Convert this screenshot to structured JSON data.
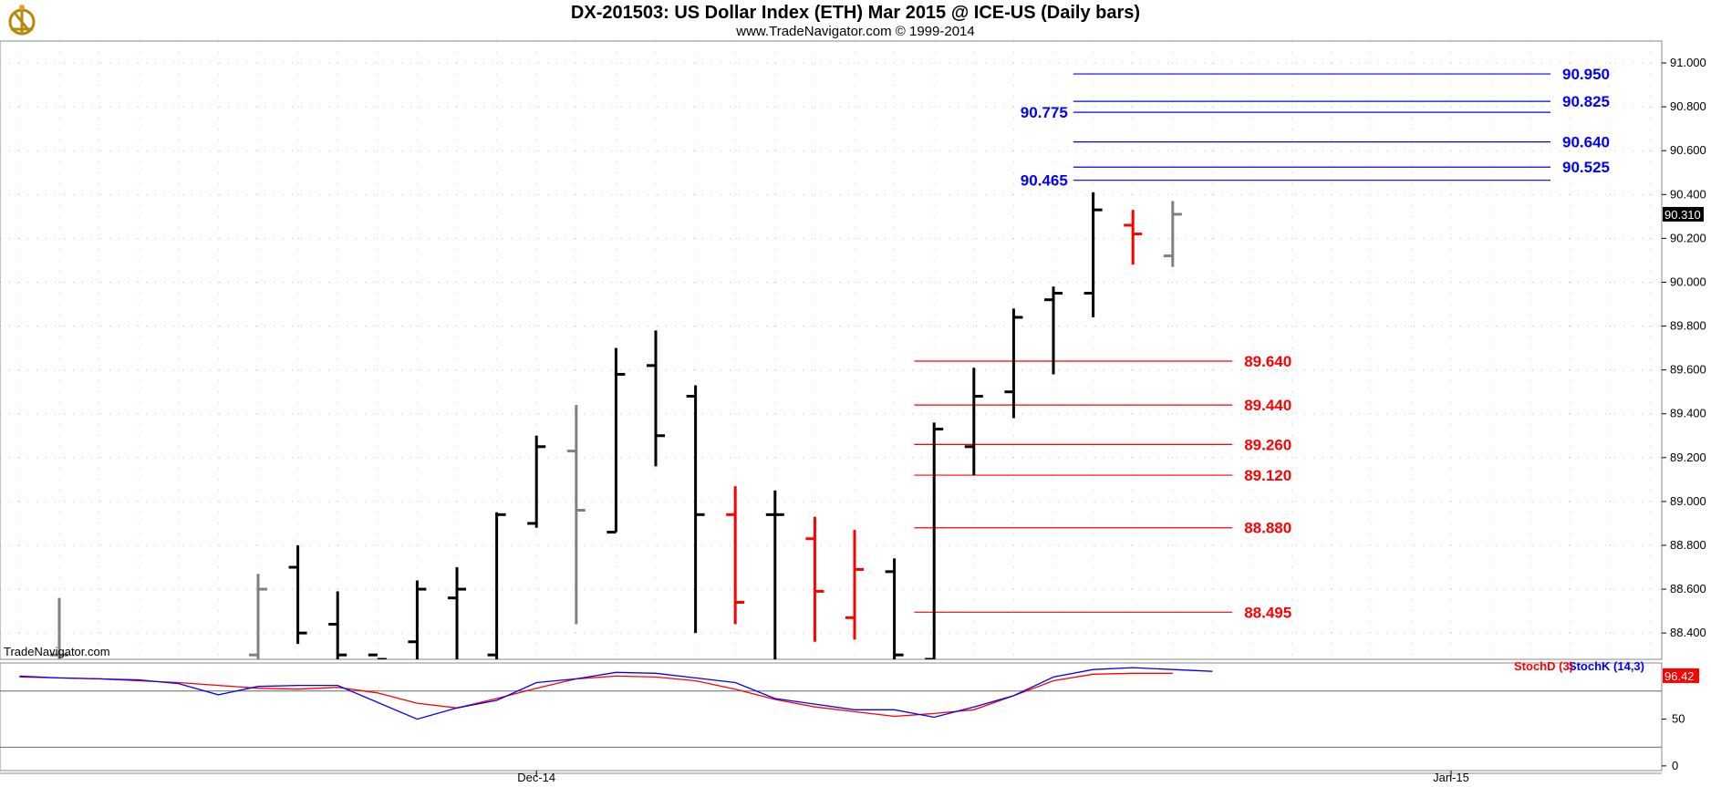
{
  "title": "DX-201503:  US Dollar Index (ETH) Mar 2015 @ ICE-US  (Daily bars)",
  "subtitle": "www.TradeNavigator.com © 1999-2014",
  "watermark": "TradeNavigator.com",
  "colors": {
    "background": "#ffffff",
    "up_bar": "#000000",
    "down_bar": "#ff0000",
    "neutral_bar": "#808080",
    "target_line": "#0000ff",
    "support_line": "#ff0000",
    "stochD": "#ff0000",
    "stochK": "#0000ff"
  },
  "chart_data": [
    {
      "type": "ohlc",
      "ylim": [
        88.28,
        91.1
      ],
      "yticks": [
        "88.400",
        "88.600",
        "88.800",
        "89.000",
        "89.200",
        "89.400",
        "89.600",
        "89.800",
        "90.000",
        "90.200",
        "90.400",
        "90.600",
        "90.800",
        "91.000"
      ],
      "xtick_labels": [
        {
          "index": 12,
          "label": "Dec-14"
        },
        {
          "index": 35,
          "label": "Jan-15"
        }
      ],
      "last_price": "90.310",
      "bars": [
        {
          "i": 0,
          "o": 88.3,
          "h": 88.56,
          "l": 88.28,
          "c": 88.3,
          "color": "gray"
        },
        {
          "i": 5,
          "o": 88.3,
          "h": 88.67,
          "l": 88.28,
          "c": 88.6,
          "color": "gray"
        },
        {
          "i": 6,
          "o": 88.7,
          "h": 88.8,
          "l": 88.35,
          "c": 88.4,
          "color": "black"
        },
        {
          "i": 7,
          "o": 88.44,
          "h": 88.59,
          "l": 88.28,
          "c": 88.3,
          "color": "black"
        },
        {
          "i": 8,
          "o": 88.3,
          "h": 88.28,
          "l": 88.28,
          "c": 88.28,
          "color": "black"
        },
        {
          "i": 9,
          "o": 88.36,
          "h": 88.64,
          "l": 88.28,
          "c": 88.6,
          "color": "black"
        },
        {
          "i": 10,
          "o": 88.56,
          "h": 88.7,
          "l": 88.28,
          "c": 88.6,
          "color": "black"
        },
        {
          "i": 11,
          "o": 88.3,
          "h": 88.95,
          "l": 88.28,
          "c": 88.94,
          "color": "black"
        },
        {
          "i": 12,
          "o": 88.9,
          "h": 89.3,
          "l": 88.88,
          "c": 89.25,
          "color": "black"
        },
        {
          "i": 13,
          "o": 89.23,
          "h": 89.44,
          "l": 88.44,
          "c": 88.96,
          "color": "gray"
        },
        {
          "i": 14,
          "o": 88.86,
          "h": 89.7,
          "l": 88.86,
          "c": 89.58,
          "color": "black"
        },
        {
          "i": 15,
          "o": 89.62,
          "h": 89.78,
          "l": 89.16,
          "c": 89.3,
          "color": "black"
        },
        {
          "i": 16,
          "o": 89.48,
          "h": 89.53,
          "l": 88.4,
          "c": 88.94,
          "color": "black"
        },
        {
          "i": 17,
          "o": 88.94,
          "h": 89.07,
          "l": 88.44,
          "c": 88.54,
          "color": "red"
        },
        {
          "i": 18,
          "o": 88.94,
          "h": 89.05,
          "l": 88.28,
          "c": 88.94,
          "color": "black"
        },
        {
          "i": 19,
          "o": 88.83,
          "h": 88.93,
          "l": 88.36,
          "c": 88.59,
          "color": "red"
        },
        {
          "i": 20,
          "o": 88.47,
          "h": 88.87,
          "l": 88.37,
          "c": 88.69,
          "color": "red"
        },
        {
          "i": 21,
          "o": 88.68,
          "h": 88.74,
          "l": 88.28,
          "c": 88.3,
          "color": "black"
        },
        {
          "i": 22,
          "o": 88.28,
          "h": 89.36,
          "l": 88.28,
          "c": 89.33,
          "color": "black"
        },
        {
          "i": 23,
          "o": 89.25,
          "h": 89.61,
          "l": 89.12,
          "c": 89.48,
          "color": "black"
        },
        {
          "i": 24,
          "o": 89.5,
          "h": 89.88,
          "l": 89.38,
          "c": 89.84,
          "color": "black"
        },
        {
          "i": 25,
          "o": 89.92,
          "h": 89.98,
          "l": 89.58,
          "c": 89.95,
          "color": "black"
        },
        {
          "i": 26,
          "o": 89.95,
          "h": 90.41,
          "l": 89.84,
          "c": 90.33,
          "color": "black"
        },
        {
          "i": 27,
          "o": 90.26,
          "h": 90.33,
          "l": 90.08,
          "c": 90.22,
          "color": "red"
        },
        {
          "i": 28,
          "o": 90.12,
          "h": 90.37,
          "l": 90.07,
          "c": 90.31,
          "color": "gray"
        }
      ],
      "levels": [
        {
          "value": 90.95,
          "label": "90.950",
          "color": "blue",
          "x_from": 25.5,
          "x_to": 37.5,
          "label_side": "right"
        },
        {
          "value": 90.825,
          "label": "90.825",
          "color": "blue",
          "x_from": 25.5,
          "x_to": 37.5,
          "label_side": "right"
        },
        {
          "value": 90.775,
          "label": "90.775",
          "color": "blue",
          "x_from": 25.5,
          "x_to": 37.5,
          "label_side": "left"
        },
        {
          "value": 90.64,
          "label": "90.640",
          "color": "blue",
          "x_from": 25.5,
          "x_to": 37.5,
          "label_side": "right"
        },
        {
          "value": 90.525,
          "label": "90.525",
          "color": "blue",
          "x_from": 25.5,
          "x_to": 37.5,
          "label_side": "right"
        },
        {
          "value": 90.465,
          "label": "90.465",
          "color": "blue",
          "x_from": 25.5,
          "x_to": 37.5,
          "label_side": "left"
        },
        {
          "value": 89.64,
          "label": "89.640",
          "color": "red",
          "x_from": 21.5,
          "x_to": 29.5,
          "label_side": "right"
        },
        {
          "value": 89.44,
          "label": "89.440",
          "color": "red",
          "x_from": 21.5,
          "x_to": 29.5,
          "label_side": "right"
        },
        {
          "value": 89.26,
          "label": "89.260",
          "color": "red",
          "x_from": 21.5,
          "x_to": 29.5,
          "label_side": "right"
        },
        {
          "value": 89.12,
          "label": "89.120",
          "color": "red",
          "x_from": 21.5,
          "x_to": 29.5,
          "label_side": "right"
        },
        {
          "value": 88.88,
          "label": "88.880",
          "color": "red",
          "x_from": 21.5,
          "x_to": 29.5,
          "label_side": "right"
        },
        {
          "value": 88.495,
          "label": "88.495",
          "color": "red",
          "x_from": 21.5,
          "x_to": 29.5,
          "label_side": "right"
        }
      ]
    },
    {
      "type": "line",
      "ylim": [
        -5,
        110
      ],
      "yticks": [
        "0",
        "50"
      ],
      "ref_lines": [
        20,
        80
      ],
      "legend": [
        {
          "name": "StochD (3)",
          "color": "red"
        },
        {
          "name": "StochK (14,3)",
          "color": "blue"
        }
      ],
      "last_value": "96.42",
      "series": [
        {
          "name": "StochD (3)",
          "color": "red",
          "points": [
            [
              -1,
              95
            ],
            [
              0,
              94
            ],
            [
              1,
              93
            ],
            [
              2,
              91
            ],
            [
              3,
              89
            ],
            [
              4,
              86
            ],
            [
              5,
              83
            ],
            [
              6,
              82
            ],
            [
              7,
              84
            ],
            [
              8,
              78
            ],
            [
              9,
              67
            ],
            [
              10,
              62
            ],
            [
              11,
              72
            ],
            [
              12,
              83
            ],
            [
              13,
              93
            ],
            [
              14,
              96
            ],
            [
              15,
              95
            ],
            [
              16,
              91
            ],
            [
              17,
              82
            ],
            [
              18,
              71
            ],
            [
              19,
              63
            ],
            [
              20,
              58
            ],
            [
              21,
              53
            ],
            [
              22,
              56
            ],
            [
              23,
              60
            ],
            [
              24,
              75
            ],
            [
              25,
              91
            ],
            [
              26,
              98
            ],
            [
              27,
              99
            ],
            [
              28,
              99
            ]
          ]
        },
        {
          "name": "StochK (14,3)",
          "color": "blue",
          "points": [
            [
              -1,
              96
            ],
            [
              0,
              94
            ],
            [
              1,
              93
            ],
            [
              2,
              92
            ],
            [
              3,
              88
            ],
            [
              4,
              76
            ],
            [
              5,
              85
            ],
            [
              6,
              86
            ],
            [
              7,
              86
            ],
            [
              8,
              68
            ],
            [
              9,
              50
            ],
            [
              10,
              62
            ],
            [
              11,
              70
            ],
            [
              12,
              89
            ],
            [
              13,
              93
            ],
            [
              14,
              100
            ],
            [
              15,
              99
            ],
            [
              16,
              94
            ],
            [
              17,
              89
            ],
            [
              18,
              72
            ],
            [
              19,
              66
            ],
            [
              20,
              60
            ],
            [
              21,
              60
            ],
            [
              22,
              52
            ],
            [
              23,
              63
            ],
            [
              24,
              75
            ],
            [
              25,
              95
            ],
            [
              26,
              103
            ],
            [
              27,
              105
            ],
            [
              28,
              103
            ],
            [
              29,
              101
            ]
          ]
        }
      ]
    }
  ]
}
